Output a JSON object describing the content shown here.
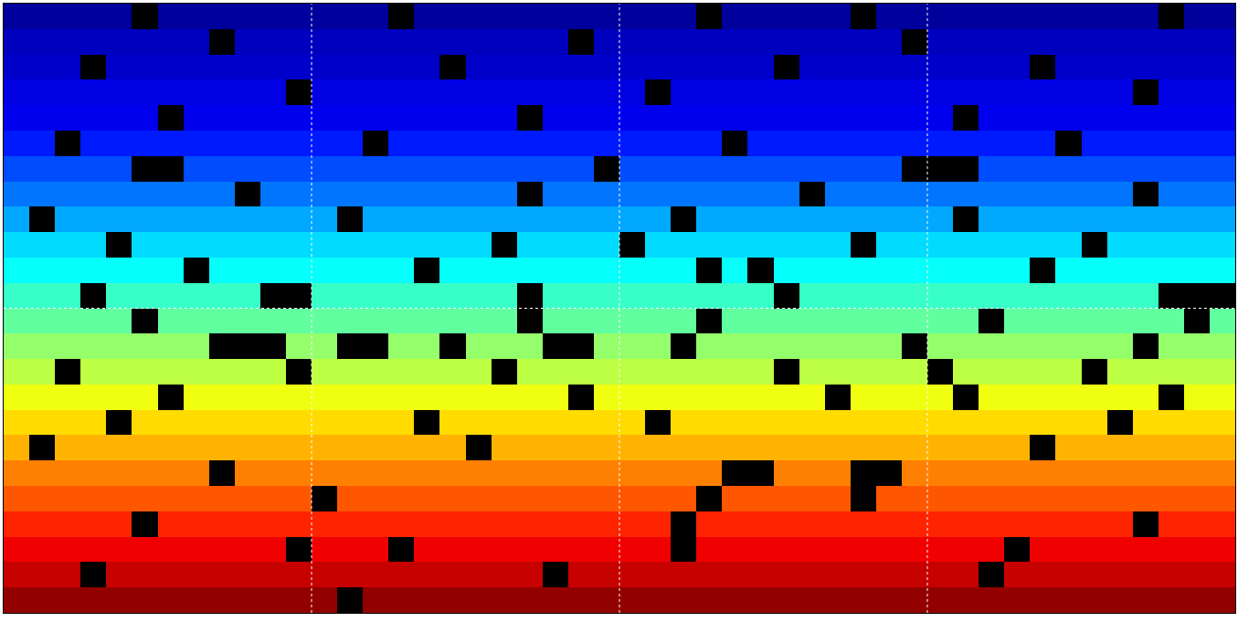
{
  "chart_data": {
    "type": "heatmap",
    "xlim": [
      0,
      4
    ],
    "ylim": [
      0,
      2
    ],
    "xticks": [
      1,
      2,
      3
    ],
    "yticks": [
      1
    ],
    "grid": true,
    "tick_labels": false,
    "zlim": [
      0,
      100
    ],
    "z": [
      [
        98,
        98,
        98,
        98,
        98,
        98,
        98,
        98,
        98,
        98,
        98,
        98,
        98,
        0,
        98,
        98,
        98,
        98,
        98,
        98,
        98,
        98,
        98,
        98,
        98,
        98,
        98,
        98,
        98,
        98,
        98,
        98,
        98,
        98,
        98,
        98,
        98,
        98,
        98,
        98,
        98,
        98,
        98,
        98,
        98,
        98,
        98,
        98
      ],
      [
        93,
        93,
        93,
        0,
        93,
        93,
        93,
        93,
        93,
        93,
        93,
        93,
        93,
        93,
        93,
        93,
        93,
        93,
        93,
        93,
        93,
        0,
        93,
        93,
        93,
        93,
        93,
        93,
        93,
        93,
        93,
        93,
        93,
        93,
        93,
        93,
        93,
        93,
        0,
        93,
        93,
        93,
        93,
        93,
        93,
        93,
        93,
        93
      ],
      [
        89,
        89,
        89,
        89,
        89,
        89,
        89,
        89,
        89,
        89,
        89,
        0,
        89,
        89,
        89,
        0,
        89,
        89,
        89,
        89,
        89,
        89,
        89,
        89,
        89,
        89,
        0,
        89,
        89,
        89,
        89,
        89,
        89,
        89,
        89,
        89,
        89,
        89,
        89,
        0,
        89,
        89,
        89,
        89,
        89,
        89,
        89,
        89
      ],
      [
        84,
        84,
        84,
        84,
        84,
        0,
        84,
        84,
        84,
        84,
        84,
        84,
        84,
        84,
        84,
        84,
        84,
        84,
        84,
        84,
        84,
        84,
        84,
        84,
        84,
        84,
        0,
        84,
        84,
        84,
        84,
        84,
        84,
        84,
        84,
        84,
        84,
        84,
        84,
        84,
        84,
        84,
        84,
        84,
        0,
        84,
        84,
        84
      ],
      [
        79,
        79,
        79,
        79,
        79,
        79,
        79,
        79,
        79,
        79,
        79,
        79,
        0,
        79,
        79,
        79,
        79,
        79,
        79,
        79,
        79,
        79,
        79,
        79,
        79,
        79,
        79,
        0,
        79,
        79,
        79,
        79,
        79,
        0,
        79,
        79,
        79,
        79,
        79,
        79,
        79,
        79,
        79,
        79,
        79,
        79,
        79,
        79
      ],
      [
        75,
        75,
        75,
        75,
        75,
        75,
        75,
        75,
        0,
        75,
        75,
        75,
        75,
        75,
        75,
        75,
        75,
        75,
        75,
        75,
        75,
        75,
        75,
        75,
        75,
        75,
        75,
        75,
        0,
        0,
        75,
        75,
        75,
        0,
        0,
        75,
        75,
        75,
        75,
        75,
        75,
        75,
        75,
        75,
        75,
        75,
        75,
        75
      ],
      [
        70,
        0,
        70,
        70,
        70,
        70,
        70,
        70,
        70,
        70,
        70,
        70,
        70,
        70,
        70,
        70,
        70,
        70,
        0,
        70,
        70,
        70,
        70,
        70,
        70,
        70,
        70,
        70,
        70,
        70,
        70,
        70,
        70,
        70,
        70,
        70,
        70,
        70,
        70,
        70,
        0,
        70,
        70,
        70,
        70,
        70,
        70,
        70
      ],
      [
        66,
        66,
        66,
        66,
        0,
        66,
        66,
        66,
        66,
        66,
        66,
        66,
        66,
        66,
        66,
        66,
        0,
        66,
        66,
        66,
        66,
        66,
        66,
        66,
        66,
        0,
        66,
        66,
        66,
        66,
        66,
        66,
        66,
        66,
        66,
        66,
        66,
        66,
        66,
        66,
        66,
        66,
        66,
        0,
        66,
        66,
        66,
        66
      ],
      [
        61,
        61,
        61,
        61,
        61,
        61,
        0,
        61,
        61,
        61,
        61,
        61,
        61,
        61,
        61,
        61,
        61,
        61,
        61,
        61,
        61,
        61,
        0,
        61,
        61,
        61,
        61,
        61,
        61,
        61,
        61,
        61,
        0,
        61,
        61,
        61,
        61,
        0,
        61,
        61,
        61,
        61,
        61,
        61,
        61,
        0,
        61,
        61
      ],
      [
        56,
        56,
        0,
        56,
        56,
        56,
        56,
        56,
        56,
        56,
        56,
        0,
        56,
        56,
        56,
        56,
        56,
        56,
        56,
        0,
        56,
        56,
        56,
        56,
        56,
        56,
        56,
        56,
        56,
        56,
        0,
        56,
        56,
        56,
        56,
        56,
        0,
        56,
        56,
        56,
        56,
        56,
        0,
        56,
        56,
        56,
        56,
        56
      ],
      [
        52,
        52,
        52,
        52,
        52,
        52,
        52,
        52,
        0,
        0,
        0,
        52,
        52,
        0,
        0,
        52,
        52,
        0,
        52,
        52,
        52,
        0,
        0,
        52,
        52,
        52,
        0,
        52,
        52,
        52,
        52,
        52,
        52,
        52,
        52,
        0,
        52,
        52,
        52,
        52,
        52,
        52,
        52,
        52,
        0,
        52,
        52,
        52
      ],
      [
        47,
        47,
        47,
        47,
        47,
        0,
        47,
        47,
        47,
        47,
        47,
        47,
        47,
        47,
        47,
        47,
        47,
        47,
        47,
        47,
        0,
        47,
        47,
        47,
        47,
        47,
        47,
        0,
        47,
        47,
        47,
        47,
        47,
        47,
        47,
        47,
        47,
        47,
        0,
        47,
        47,
        47,
        47,
        47,
        47,
        47,
        0,
        47
      ],
      [
        43,
        43,
        43,
        0,
        43,
        43,
        43,
        43,
        43,
        43,
        0,
        0,
        43,
        43,
        43,
        43,
        43,
        43,
        43,
        43,
        0,
        43,
        43,
        43,
        43,
        43,
        43,
        43,
        43,
        43,
        0,
        43,
        43,
        43,
        43,
        43,
        43,
        43,
        43,
        43,
        43,
        43,
        43,
        43,
        43,
        0,
        0,
        0
      ],
      [
        38,
        38,
        38,
        38,
        38,
        38,
        38,
        0,
        38,
        38,
        38,
        38,
        38,
        38,
        38,
        38,
        0,
        38,
        38,
        38,
        38,
        38,
        38,
        38,
        38,
        38,
        38,
        0,
        38,
        0,
        38,
        38,
        38,
        38,
        38,
        38,
        38,
        38,
        38,
        38,
        0,
        38,
        38,
        38,
        38,
        38,
        38,
        38
      ],
      [
        34,
        34,
        34,
        34,
        0,
        34,
        34,
        34,
        34,
        34,
        34,
        34,
        34,
        34,
        34,
        34,
        34,
        34,
        34,
        0,
        34,
        34,
        34,
        34,
        0,
        34,
        34,
        34,
        34,
        34,
        34,
        34,
        34,
        0,
        34,
        34,
        34,
        34,
        34,
        34,
        34,
        34,
        0,
        34,
        34,
        34,
        34,
        34
      ],
      [
        29,
        0,
        29,
        29,
        29,
        29,
        29,
        29,
        29,
        29,
        29,
        29,
        29,
        0,
        29,
        29,
        29,
        29,
        29,
        29,
        29,
        29,
        29,
        29,
        29,
        29,
        0,
        29,
        29,
        29,
        29,
        29,
        29,
        29,
        29,
        29,
        29,
        0,
        29,
        29,
        29,
        29,
        29,
        29,
        29,
        29,
        29,
        29
      ],
      [
        24,
        24,
        24,
        24,
        24,
        24,
        24,
        24,
        24,
        0,
        24,
        24,
        24,
        24,
        24,
        24,
        24,
        24,
        24,
        24,
        0,
        24,
        24,
        24,
        24,
        24,
        24,
        24,
        24,
        24,
        24,
        0,
        24,
        24,
        24,
        24,
        24,
        24,
        24,
        24,
        24,
        24,
        24,
        24,
        0,
        24,
        24,
        24
      ],
      [
        20,
        20,
        20,
        20,
        20,
        0,
        0,
        20,
        20,
        20,
        20,
        20,
        20,
        20,
        20,
        20,
        20,
        20,
        20,
        20,
        20,
        20,
        20,
        0,
        20,
        20,
        20,
        20,
        20,
        20,
        20,
        20,
        20,
        20,
        20,
        0,
        0,
        0,
        20,
        20,
        20,
        20,
        20,
        20,
        20,
        20,
        20,
        20
      ],
      [
        15,
        15,
        0,
        15,
        15,
        15,
        15,
        15,
        15,
        15,
        15,
        15,
        15,
        15,
        0,
        15,
        15,
        15,
        15,
        15,
        15,
        15,
        15,
        15,
        15,
        15,
        15,
        15,
        0,
        15,
        15,
        15,
        15,
        15,
        15,
        15,
        15,
        15,
        15,
        15,
        15,
        0,
        15,
        15,
        15,
        15,
        15,
        15
      ],
      [
        11,
        11,
        11,
        11,
        11,
        11,
        0,
        11,
        11,
        11,
        11,
        11,
        11,
        11,
        11,
        11,
        11,
        11,
        11,
        11,
        0,
        11,
        11,
        11,
        11,
        11,
        11,
        11,
        11,
        11,
        11,
        11,
        11,
        11,
        11,
        11,
        11,
        0,
        11,
        11,
        11,
        11,
        11,
        11,
        11,
        11,
        11,
        11
      ],
      [
        10,
        10,
        10,
        10,
        10,
        10,
        10,
        10,
        10,
        10,
        10,
        0,
        10,
        10,
        10,
        10,
        10,
        10,
        10,
        10,
        10,
        10,
        10,
        10,
        10,
        0,
        10,
        10,
        10,
        10,
        10,
        10,
        10,
        10,
        10,
        10,
        10,
        10,
        10,
        10,
        10,
        10,
        10,
        10,
        0,
        10,
        10,
        10
      ],
      [
        8,
        8,
        8,
        0,
        8,
        8,
        8,
        8,
        8,
        8,
        8,
        8,
        8,
        8,
        8,
        8,
        8,
        0,
        8,
        8,
        8,
        8,
        8,
        8,
        8,
        8,
        8,
        8,
        8,
        8,
        0,
        8,
        8,
        8,
        8,
        8,
        8,
        8,
        8,
        8,
        0,
        8,
        8,
        8,
        8,
        8,
        8,
        8
      ],
      [
        7,
        7,
        7,
        7,
        7,
        7,
        7,
        7,
        0,
        7,
        7,
        7,
        7,
        7,
        7,
        7,
        7,
        7,
        7,
        7,
        7,
        7,
        0,
        7,
        7,
        7,
        7,
        7,
        7,
        7,
        7,
        7,
        7,
        7,
        7,
        0,
        7,
        7,
        7,
        7,
        7,
        7,
        7,
        7,
        7,
        7,
        7,
        7
      ],
      [
        4,
        4,
        4,
        4,
        4,
        0,
        4,
        4,
        4,
        4,
        4,
        4,
        4,
        4,
        4,
        0,
        4,
        4,
        4,
        4,
        4,
        4,
        4,
        4,
        4,
        4,
        4,
        0,
        4,
        4,
        4,
        4,
        4,
        0,
        4,
        4,
        4,
        4,
        4,
        4,
        4,
        4,
        4,
        4,
        4,
        0,
        4,
        4
      ]
    ]
  }
}
